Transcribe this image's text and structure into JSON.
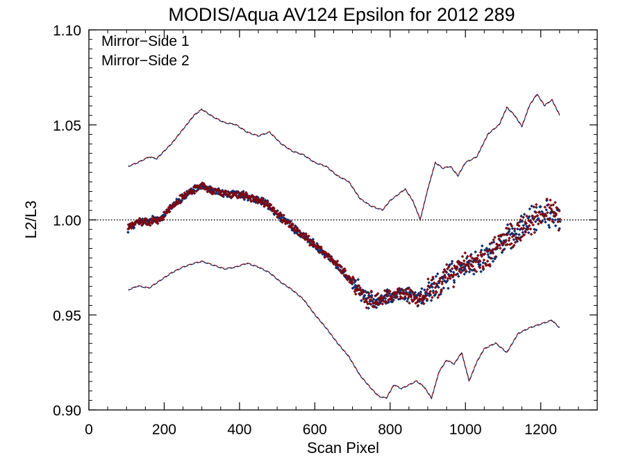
{
  "chart_data": {
    "type": "scatter",
    "title": "MODIS/Aqua AV124 Epsilon for 2012 289",
    "xlabel": "Scan Pixel",
    "ylabel": "L2/L3",
    "xlim": [
      0,
      1350
    ],
    "ylim": [
      0.9,
      1.1
    ],
    "xticks": [
      {
        "value": 0,
        "label": "0"
      },
      {
        "value": 200,
        "label": "200"
      },
      {
        "value": 400,
        "label": "400"
      },
      {
        "value": 600,
        "label": "600"
      },
      {
        "value": 800,
        "label": "800"
      },
      {
        "value": 1000,
        "label": "1000"
      },
      {
        "value": 1200,
        "label": "1200"
      }
    ],
    "yticks": [
      {
        "value": 0.9,
        "label": "0.90"
      },
      {
        "value": 0.95,
        "label": "0.95"
      },
      {
        "value": 1.0,
        "label": "1.00"
      },
      {
        "value": 1.05,
        "label": "1.05"
      },
      {
        "value": 1.1,
        "label": "1.10"
      }
    ],
    "reference_line": {
      "y": 1.0,
      "style": "dotted",
      "color": "#000000"
    },
    "legend": {
      "placement": "top-left"
    },
    "series": [
      {
        "name": "Mirror−Side 1",
        "color": "#0d2f6e",
        "mean_x": [
          105,
          130,
          160,
          190,
          220,
          250,
          280,
          300,
          330,
          360,
          400,
          440,
          470,
          500,
          530,
          560,
          600,
          640,
          680,
          710,
          740,
          770,
          800,
          830,
          860,
          880,
          910,
          940,
          970,
          1000,
          1040,
          1080,
          1110,
          1140,
          1170,
          1200,
          1230,
          1250
        ],
        "mean_y": [
          0.996,
          0.999,
          0.999,
          1.001,
          1.007,
          1.012,
          1.016,
          1.018,
          1.015,
          1.014,
          1.013,
          1.011,
          1.009,
          1.003,
          0.998,
          0.993,
          0.987,
          0.98,
          0.972,
          0.965,
          0.958,
          0.957,
          0.96,
          0.962,
          0.96,
          0.958,
          0.964,
          0.968,
          0.972,
          0.976,
          0.98,
          0.985,
          0.99,
          0.993,
          0.999,
          1.003,
          1.004,
          1.002
        ],
        "upper_x": [
          105,
          130,
          160,
          180,
          200,
          220,
          240,
          260,
          280,
          300,
          330,
          360,
          390,
          420,
          450,
          480,
          510,
          540,
          570,
          600,
          630,
          660,
          690,
          720,
          750,
          780,
          800,
          820,
          840,
          860,
          880,
          900,
          920,
          940,
          960,
          980,
          1000,
          1030,
          1060,
          1090,
          1110,
          1130,
          1150,
          1170,
          1190,
          1210,
          1230,
          1250
        ],
        "upper_y": [
          1.028,
          1.03,
          1.033,
          1.032,
          1.036,
          1.04,
          1.045,
          1.05,
          1.055,
          1.058,
          1.054,
          1.051,
          1.05,
          1.046,
          1.044,
          1.046,
          1.04,
          1.036,
          1.034,
          1.03,
          1.028,
          1.023,
          1.02,
          1.011,
          1.007,
          1.005,
          1.01,
          1.013,
          1.016,
          1.01,
          1.0,
          1.016,
          1.03,
          1.027,
          1.028,
          1.023,
          1.03,
          1.033,
          1.045,
          1.05,
          1.059,
          1.055,
          1.049,
          1.06,
          1.066,
          1.06,
          1.063,
          1.055
        ],
        "lower_x": [
          105,
          130,
          160,
          190,
          220,
          250,
          280,
          300,
          330,
          360,
          390,
          420,
          450,
          480,
          510,
          540,
          570,
          600,
          630,
          660,
          690,
          720,
          750,
          770,
          790,
          810,
          830,
          850,
          870,
          890,
          910,
          930,
          950,
          970,
          990,
          1010,
          1030,
          1050,
          1080,
          1110,
          1140,
          1170,
          1200,
          1230,
          1250
        ],
        "lower_y": [
          0.963,
          0.965,
          0.964,
          0.968,
          0.972,
          0.975,
          0.977,
          0.978,
          0.976,
          0.974,
          0.975,
          0.977,
          0.975,
          0.972,
          0.967,
          0.963,
          0.958,
          0.95,
          0.943,
          0.935,
          0.928,
          0.918,
          0.911,
          0.907,
          0.906,
          0.913,
          0.911,
          0.913,
          0.915,
          0.912,
          0.906,
          0.92,
          0.926,
          0.924,
          0.93,
          0.915,
          0.925,
          0.932,
          0.935,
          0.93,
          0.94,
          0.943,
          0.945,
          0.947,
          0.943
        ]
      },
      {
        "name": "Mirror−Side 2",
        "color": "#7b0a14",
        "mean_x": [
          105,
          130,
          160,
          190,
          220,
          250,
          280,
          300,
          330,
          360,
          400,
          440,
          470,
          500,
          530,
          560,
          600,
          640,
          680,
          710,
          740,
          770,
          800,
          830,
          860,
          880,
          910,
          940,
          970,
          1000,
          1040,
          1080,
          1110,
          1140,
          1170,
          1200,
          1230,
          1250
        ],
        "mean_y": [
          0.996,
          0.999,
          0.999,
          1.001,
          1.007,
          1.012,
          1.016,
          1.018,
          1.015,
          1.014,
          1.013,
          1.011,
          1.009,
          1.003,
          0.998,
          0.993,
          0.987,
          0.98,
          0.972,
          0.965,
          0.958,
          0.957,
          0.96,
          0.962,
          0.96,
          0.958,
          0.964,
          0.968,
          0.972,
          0.976,
          0.98,
          0.985,
          0.99,
          0.993,
          0.999,
          1.003,
          1.004,
          1.002
        ],
        "upper_x": [
          105,
          130,
          160,
          180,
          200,
          220,
          240,
          260,
          280,
          300,
          330,
          360,
          390,
          420,
          450,
          480,
          510,
          540,
          570,
          600,
          630,
          660,
          690,
          720,
          750,
          780,
          800,
          820,
          840,
          860,
          880,
          900,
          920,
          940,
          960,
          980,
          1000,
          1030,
          1060,
          1090,
          1110,
          1130,
          1150,
          1170,
          1190,
          1210,
          1230,
          1250
        ],
        "upper_y": [
          1.028,
          1.03,
          1.033,
          1.032,
          1.036,
          1.04,
          1.045,
          1.05,
          1.055,
          1.058,
          1.054,
          1.051,
          1.05,
          1.046,
          1.044,
          1.046,
          1.04,
          1.036,
          1.034,
          1.03,
          1.028,
          1.023,
          1.02,
          1.011,
          1.007,
          1.005,
          1.01,
          1.013,
          1.016,
          1.01,
          1.0,
          1.016,
          1.03,
          1.027,
          1.028,
          1.023,
          1.03,
          1.033,
          1.045,
          1.05,
          1.059,
          1.055,
          1.049,
          1.06,
          1.066,
          1.06,
          1.063,
          1.055
        ],
        "lower_x": [
          105,
          130,
          160,
          190,
          220,
          250,
          280,
          300,
          330,
          360,
          390,
          420,
          450,
          480,
          510,
          540,
          570,
          600,
          630,
          660,
          690,
          720,
          750,
          770,
          790,
          810,
          830,
          850,
          870,
          890,
          910,
          930,
          950,
          970,
          990,
          1010,
          1030,
          1050,
          1080,
          1110,
          1140,
          1170,
          1200,
          1230,
          1250
        ],
        "lower_y": [
          0.963,
          0.965,
          0.964,
          0.968,
          0.972,
          0.975,
          0.977,
          0.978,
          0.976,
          0.974,
          0.975,
          0.977,
          0.975,
          0.972,
          0.967,
          0.963,
          0.958,
          0.95,
          0.943,
          0.935,
          0.928,
          0.918,
          0.911,
          0.907,
          0.906,
          0.913,
          0.911,
          0.913,
          0.915,
          0.912,
          0.906,
          0.92,
          0.926,
          0.924,
          0.93,
          0.915,
          0.925,
          0.932,
          0.935,
          0.93,
          0.94,
          0.943,
          0.945,
          0.947,
          0.943
        ]
      }
    ]
  }
}
